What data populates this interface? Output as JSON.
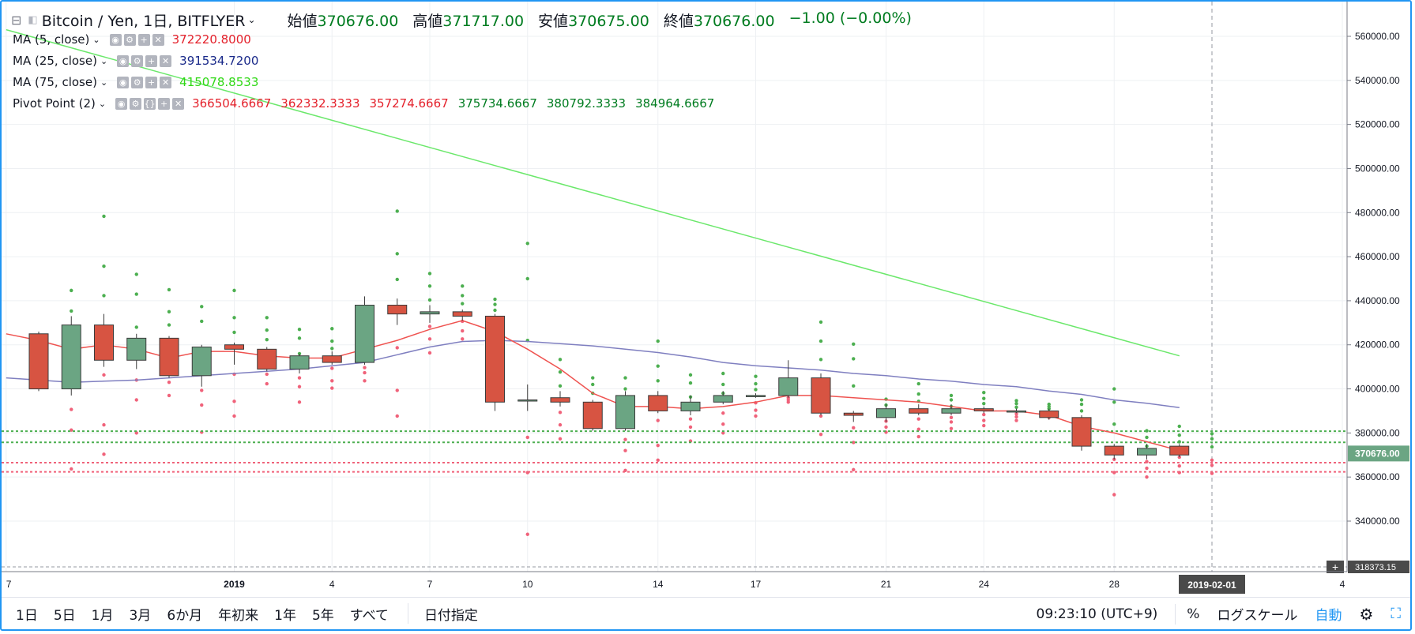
{
  "header": {
    "symbol": "Bitcoin / Yen, 1日, BITFLYER",
    "open_label": "始値",
    "open": "370676.00",
    "high_label": "高値",
    "high": "371717.00",
    "low_label": "安値",
    "low": "370675.00",
    "close_label": "終値",
    "close": "370676.00",
    "change": "−1.00 (−0.00%)"
  },
  "indicators": [
    {
      "name": "MA (5, close)",
      "values": [
        {
          "text": "372220.8000",
          "color": "#e4212b"
        }
      ]
    },
    {
      "name": "MA (25, close)",
      "values": [
        {
          "text": "391534.7200",
          "color": "#1a2a8a"
        }
      ]
    },
    {
      "name": "MA (75, close)",
      "values": [
        {
          "text": "415078.8533",
          "color": "#2fd815"
        }
      ]
    },
    {
      "name": "Pivot Point (2)",
      "values": [
        {
          "text": "366504.6667",
          "color": "#e4212b"
        },
        {
          "text": "362332.3333",
          "color": "#e4212b"
        },
        {
          "text": "357274.6667",
          "color": "#e4212b"
        },
        {
          "text": "375734.6667",
          "color": "#007c20"
        },
        {
          "text": "380792.3333",
          "color": "#007c20"
        },
        {
          "text": "384964.6667",
          "color": "#007c20"
        }
      ]
    }
  ],
  "bottom": {
    "ranges": [
      "1日",
      "5日",
      "1月",
      "3月",
      "6か月",
      "年初来",
      "1年",
      "5年",
      "すべて"
    ],
    "date_select": "日付指定",
    "time": "09:23:10 (UTC+9)",
    "percent": "%",
    "log": "ログスケール",
    "auto": "自動",
    "settings_icon": "gear-icon",
    "fullscreen_icon": "fullscreen-icon"
  },
  "colors": {
    "up": "#6ba583",
    "down": "#d75442",
    "ma5": "#ef5350",
    "ma25": "#7f7fc0",
    "ma75": "#6be86b",
    "pivot_red": "#f0627a",
    "pivot_green": "#4caf50",
    "accent": "#2196f3"
  },
  "chart_data": {
    "type": "candlestick",
    "y_ticks": [
      "560000.00",
      "540000.00",
      "520000.00",
      "500000.00",
      "480000.00",
      "460000.00",
      "440000.00",
      "420000.00",
      "400000.00",
      "380000.00",
      "360000.00",
      "340000.00"
    ],
    "ylim": [
      316000,
      572000
    ],
    "current_price_label": "370676.00",
    "bottom_price_label": "318373.15",
    "crosshair_date_label": "2019-02-01",
    "x_ticks": [
      {
        "label": "7",
        "day": -1
      },
      {
        "label": "2019",
        "day": 6
      },
      {
        "label": "4",
        "day": 9
      },
      {
        "label": "7",
        "day": 12
      },
      {
        "label": "10",
        "day": 15
      },
      {
        "label": "14",
        "day": 19
      },
      {
        "label": "17",
        "day": 22
      },
      {
        "label": "21",
        "day": 26
      },
      {
        "label": "24",
        "day": 29
      },
      {
        "label": "28",
        "day": 33
      },
      {
        "label": "4",
        "day": 40
      }
    ],
    "candles": [
      {
        "day": 0,
        "o": 425000,
        "h": 426000,
        "l": 399000,
        "c": 400000
      },
      {
        "day": 1,
        "o": 400000,
        "h": 433000,
        "l": 397000,
        "c": 429000
      },
      {
        "day": 2,
        "o": 429000,
        "h": 434000,
        "l": 410000,
        "c": 413000
      },
      {
        "day": 3,
        "o": 413000,
        "h": 425000,
        "l": 409000,
        "c": 423000
      },
      {
        "day": 4,
        "o": 423000,
        "h": 424000,
        "l": 405000,
        "c": 406000
      },
      {
        "day": 5,
        "o": 406000,
        "h": 420000,
        "l": 401000,
        "c": 419000
      },
      {
        "day": 6,
        "o": 420000,
        "h": 421000,
        "l": 411000,
        "c": 418000
      },
      {
        "day": 7,
        "o": 418000,
        "h": 419000,
        "l": 408000,
        "c": 409000
      },
      {
        "day": 8,
        "o": 409000,
        "h": 416000,
        "l": 407000,
        "c": 415000
      },
      {
        "day": 9,
        "o": 415000,
        "h": 417000,
        "l": 411000,
        "c": 412000
      },
      {
        "day": 10,
        "o": 412000,
        "h": 442000,
        "l": 411000,
        "c": 438000
      },
      {
        "day": 11,
        "o": 438000,
        "h": 441000,
        "l": 429000,
        "c": 434000
      },
      {
        "day": 12,
        "o": 434000,
        "h": 438000,
        "l": 430000,
        "c": 435000
      },
      {
        "day": 13,
        "o": 435000,
        "h": 436000,
        "l": 431000,
        "c": 433000
      },
      {
        "day": 14,
        "o": 433000,
        "h": 434000,
        "l": 390000,
        "c": 394000
      },
      {
        "day": 15,
        "o": 395000,
        "h": 402000,
        "l": 390000,
        "c": 395000
      },
      {
        "day": 16,
        "o": 396000,
        "h": 399000,
        "l": 392000,
        "c": 394000
      },
      {
        "day": 17,
        "o": 394000,
        "h": 395000,
        "l": 381000,
        "c": 382000
      },
      {
        "day": 18,
        "o": 382000,
        "h": 399000,
        "l": 381000,
        "c": 397000
      },
      {
        "day": 19,
        "o": 397000,
        "h": 399000,
        "l": 389000,
        "c": 390000
      },
      {
        "day": 20,
        "o": 390000,
        "h": 397000,
        "l": 388000,
        "c": 394000
      },
      {
        "day": 21,
        "o": 394000,
        "h": 399000,
        "l": 393000,
        "c": 397000
      },
      {
        "day": 22,
        "o": 397000,
        "h": 398000,
        "l": 396000,
        "c": 397000
      },
      {
        "day": 23,
        "o": 397000,
        "h": 413000,
        "l": 396000,
        "c": 405000
      },
      {
        "day": 24,
        "o": 405000,
        "h": 407000,
        "l": 388000,
        "c": 389000
      },
      {
        "day": 25,
        "o": 389000,
        "h": 390000,
        "l": 385000,
        "c": 388000
      },
      {
        "day": 26,
        "o": 387000,
        "h": 393000,
        "l": 385000,
        "c": 391000
      },
      {
        "day": 27,
        "o": 391000,
        "h": 393000,
        "l": 388000,
        "c": 389000
      },
      {
        "day": 28,
        "o": 389000,
        "h": 393000,
        "l": 388000,
        "c": 391000
      },
      {
        "day": 29,
        "o": 391000,
        "h": 392000,
        "l": 389000,
        "c": 390000
      },
      {
        "day": 30,
        "o": 390000,
        "h": 391000,
        "l": 389000,
        "c": 390000
      },
      {
        "day": 31,
        "o": 390000,
        "h": 391000,
        "l": 386000,
        "c": 387000
      },
      {
        "day": 32,
        "o": 387000,
        "h": 388000,
        "l": 372000,
        "c": 374000
      },
      {
        "day": 33,
        "o": 374000,
        "h": 375000,
        "l": 368000,
        "c": 370000
      },
      {
        "day": 34,
        "o": 370000,
        "h": 375000,
        "l": 368000,
        "c": 373000
      },
      {
        "day": 35,
        "o": 374000,
        "h": 375000,
        "l": 369000,
        "c": 370000
      }
    ],
    "ma5": [
      [
        -1,
        425000
      ],
      [
        0,
        422000
      ],
      [
        1,
        418000
      ],
      [
        2,
        420000
      ],
      [
        3,
        418000
      ],
      [
        4,
        414000
      ],
      [
        5,
        417000
      ],
      [
        6,
        417000
      ],
      [
        7,
        415000
      ],
      [
        8,
        414000
      ],
      [
        9,
        414000
      ],
      [
        10,
        418000
      ],
      [
        11,
        422000
      ],
      [
        12,
        427000
      ],
      [
        13,
        431000
      ],
      [
        14,
        426000
      ],
      [
        15,
        418000
      ],
      [
        16,
        409000
      ],
      [
        17,
        398000
      ],
      [
        18,
        392000
      ],
      [
        19,
        392000
      ],
      [
        20,
        391000
      ],
      [
        21,
        392000
      ],
      [
        22,
        394000
      ],
      [
        23,
        397000
      ],
      [
        24,
        397000
      ],
      [
        25,
        396000
      ],
      [
        26,
        395000
      ],
      [
        27,
        394000
      ],
      [
        28,
        392000
      ],
      [
        29,
        390000
      ],
      [
        30,
        390000
      ],
      [
        31,
        388000
      ],
      [
        32,
        383000
      ],
      [
        33,
        380000
      ],
      [
        34,
        376000
      ],
      [
        35,
        372000
      ]
    ],
    "ma25": [
      [
        -1,
        405000
      ],
      [
        0,
        404000
      ],
      [
        1,
        403000
      ],
      [
        2,
        403500
      ],
      [
        3,
        404000
      ],
      [
        4,
        405000
      ],
      [
        5,
        406000
      ],
      [
        6,
        407000
      ],
      [
        7,
        408000
      ],
      [
        8,
        409000
      ],
      [
        9,
        410500
      ],
      [
        10,
        412000
      ],
      [
        11,
        415500
      ],
      [
        12,
        419000
      ],
      [
        13,
        421500
      ],
      [
        14,
        422000
      ],
      [
        15,
        421500
      ],
      [
        16,
        420500
      ],
      [
        17,
        419500
      ],
      [
        18,
        418000
      ],
      [
        19,
        416500
      ],
      [
        20,
        414500
      ],
      [
        21,
        412000
      ],
      [
        22,
        410500
      ],
      [
        23,
        409500
      ],
      [
        24,
        408500
      ],
      [
        25,
        407000
      ],
      [
        26,
        406000
      ],
      [
        27,
        404500
      ],
      [
        28,
        403500
      ],
      [
        29,
        402000
      ],
      [
        30,
        401000
      ],
      [
        31,
        399000
      ],
      [
        32,
        397500
      ],
      [
        33,
        395000
      ],
      [
        34,
        393500
      ],
      [
        35,
        391500
      ]
    ],
    "ma75": [
      [
        -1,
        563000
      ],
      [
        35,
        415000
      ]
    ],
    "pivot_levels": [
      {
        "value": 380792,
        "color": "#4caf50"
      },
      {
        "value": 375734,
        "color": "#4caf50"
      },
      {
        "value": 366504,
        "color": "#f0627a"
      },
      {
        "value": 362332,
        "color": "#f0627a"
      }
    ]
  }
}
